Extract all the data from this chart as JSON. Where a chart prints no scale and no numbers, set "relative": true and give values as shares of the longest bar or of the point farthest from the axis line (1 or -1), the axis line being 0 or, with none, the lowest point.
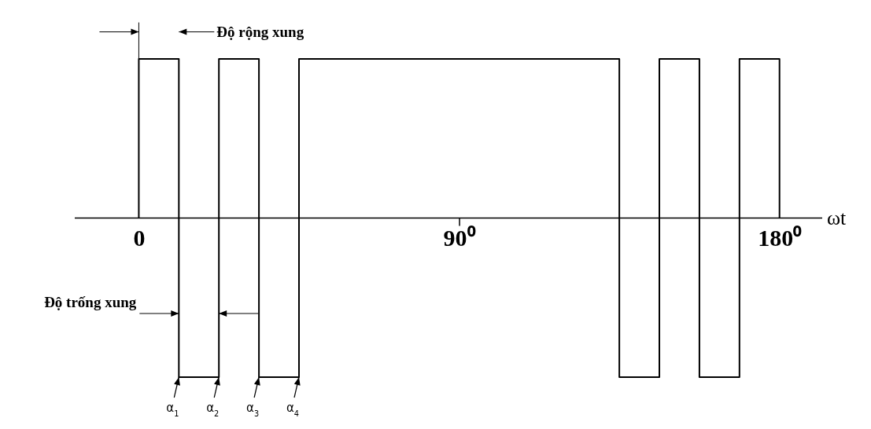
{
  "chart_data": {
    "type": "step",
    "relative": true,
    "xlabel": "ωt",
    "x": [
      0,
      0,
      11.25,
      22.5,
      33.75,
      45,
      135,
      146.25,
      157.5,
      168.75,
      180
    ],
    "series": [
      {
        "color": "#000000",
        "values": [
          0,
          1,
          -1,
          1,
          -1,
          1,
          -1,
          1,
          -1,
          1,
          0
        ]
      }
    ],
    "xlim": [
      -18,
      192
    ],
    "xticks": [
      0,
      {
        "value": 90,
        "label": "90⁰"
      },
      {
        "value": 180,
        "label": "180⁰"
      }
    ],
    "grid": false,
    "marker": "none",
    "line_style": "solid",
    "annotations": [
      "Độ rộng xung",
      "Độ trống xung",
      {
        "text": "α$_{1}$",
        "x": 11.25,
        "y": -1
      },
      {
        "text": "α$_{2}$",
        "x": 22.5,
        "y": -1
      },
      {
        "text": "α$_{3}$",
        "x": 33.75,
        "y": -1
      },
      {
        "text": "α$_{4}$",
        "x": 45,
        "y": -1
      }
    ]
  }
}
